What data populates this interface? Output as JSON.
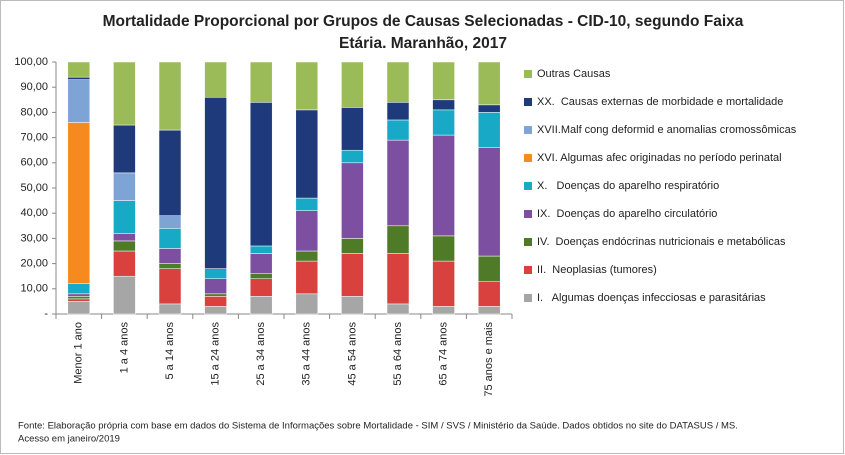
{
  "chart_data": {
    "type": "stacked_bar",
    "title": [
      "Mortalidade Proporcional por Grupos de Causas Selecionadas - CID-10, segundo Faixa",
      "Etária. Maranhão, 2017"
    ],
    "categories": [
      "Menor 1 ano",
      "1 a 4 anos",
      "5 a 14 anos",
      "15 a 24 anos",
      "25 a 34 anos",
      "35 a 44 anos",
      "45 a 54 anos",
      "55 a 64 anos",
      "65 a 74 anos",
      "75 anos e mais"
    ],
    "series": [
      {
        "name": "I.   Algumas doenças infecciosas e parasitárias",
        "color": "#a6a6a6",
        "values": [
          5,
          15,
          4,
          3,
          7,
          8,
          7,
          4,
          3,
          3
        ]
      },
      {
        "name": "II.  Neoplasias (tumores)",
        "color": "#d9413e",
        "values": [
          1,
          10,
          14,
          4,
          7,
          13,
          17,
          20,
          18,
          10
        ]
      },
      {
        "name": "IV.  Doenças endócrinas nutricionais e metabólicas",
        "color": "#4f7a28",
        "values": [
          1,
          4,
          2,
          1,
          2,
          4,
          6,
          11,
          10,
          10
        ]
      },
      {
        "name": "IX.  Doenças do aparelho circulatório",
        "color": "#7d4fa1",
        "values": [
          1,
          3,
          6,
          6,
          8,
          16,
          30,
          34,
          40,
          43
        ]
      },
      {
        "name": "X.   Doenças do aparelho respiratório",
        "color": "#17a9c6",
        "values": [
          4,
          13,
          8,
          4,
          3,
          5,
          5,
          8,
          10,
          14
        ]
      },
      {
        "name": "XVI. Algumas afec originadas no período perinatal",
        "color": "#f68a1e",
        "values": [
          64,
          0,
          0,
          0,
          0,
          0,
          0,
          0,
          0,
          0
        ]
      },
      {
        "name": "XVII.Malf cong deformid e anomalias cromossômicas",
        "color": "#7ea4d6",
        "values": [
          17,
          11,
          5,
          0,
          0,
          0,
          0,
          0,
          0,
          0
        ]
      },
      {
        "name": "XX.  Causas externas de morbidade e mortalidade",
        "color": "#1f3a7a",
        "values": [
          1,
          19,
          34,
          68,
          57,
          35,
          17,
          7,
          4,
          3
        ]
      },
      {
        "name": "Outras Causas",
        "color": "#9bbb59",
        "values": [
          6,
          25,
          27,
          14,
          16,
          19,
          18,
          16,
          15,
          17
        ]
      }
    ],
    "ylim": [
      0,
      100
    ],
    "yticks": [
      {
        "value": 0,
        "label": "-"
      },
      {
        "value": 10,
        "label": "10,00"
      },
      {
        "value": 20,
        "label": "20,00"
      },
      {
        "value": 30,
        "label": "30,00"
      },
      {
        "value": 40,
        "label": "40,00"
      },
      {
        "value": 50,
        "label": "50,00"
      },
      {
        "value": 60,
        "label": "60,00"
      },
      {
        "value": 70,
        "label": "70,00"
      },
      {
        "value": 80,
        "label": "80,00"
      },
      {
        "value": 90,
        "label": "90,00"
      },
      {
        "value": 100,
        "label": "100,00"
      }
    ],
    "grid": false,
    "legend": "right",
    "note": [
      "Fonte: Elaboração própria com base em dados do  Sistema de Informações sobre Mortalidade - SIM / SVS / Ministério da Saúde. Dados obtidos no site do DATASUS / MS.",
      "Acesso em janeiro/2019"
    ]
  }
}
